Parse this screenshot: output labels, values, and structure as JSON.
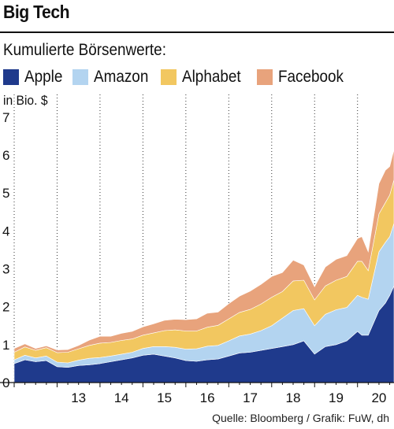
{
  "header": {
    "title": "Big Tech",
    "subtitle": "Kumulierte Börsenwerte:",
    "unit": "in Bio. $",
    "source": "Quelle: Bloomberg / Grafik: FuW, dh"
  },
  "chart_data": {
    "type": "area",
    "stacked": true,
    "title": "Big Tech",
    "subtitle": "Kumulierte Börsenwerte:",
    "ylabel": "in Bio. $",
    "ylim": [
      0,
      7.6
    ],
    "yticks": [
      0,
      1,
      2,
      3,
      4,
      5,
      6,
      7
    ],
    "ytick_labels": [
      "0",
      "1",
      "2",
      "3",
      "4",
      "5",
      "6",
      "7"
    ],
    "xlim": [
      2012.0,
      2020.85
    ],
    "xticks": [
      2013.5,
      2014.5,
      2015.5,
      2016.5,
      2017.5,
      2018.5,
      2019.5,
      2020.5
    ],
    "xtick_labels": [
      "13",
      "14",
      "15",
      "16",
      "17",
      "18",
      "19",
      "20"
    ],
    "gridlines": "vertical dotted at year boundaries",
    "legend": "top, horizontal",
    "x": [
      2012.0,
      2012.25,
      2012.5,
      2012.75,
      2013.0,
      2013.25,
      2013.5,
      2013.75,
      2014.0,
      2014.25,
      2014.5,
      2014.75,
      2015.0,
      2015.25,
      2015.5,
      2015.75,
      2016.0,
      2016.25,
      2016.5,
      2016.75,
      2017.0,
      2017.25,
      2017.5,
      2017.75,
      2018.0,
      2018.25,
      2018.5,
      2018.75,
      2019.0,
      2019.25,
      2019.5,
      2019.75,
      2020.0,
      2020.1,
      2020.25,
      2020.5,
      2020.65,
      2020.75,
      2020.85
    ],
    "series": [
      {
        "name": "Apple",
        "color": "#1f3a8c",
        "values": [
          0.5,
          0.6,
          0.55,
          0.58,
          0.42,
          0.4,
          0.45,
          0.47,
          0.5,
          0.55,
          0.6,
          0.65,
          0.72,
          0.75,
          0.7,
          0.65,
          0.58,
          0.56,
          0.6,
          0.62,
          0.7,
          0.78,
          0.8,
          0.85,
          0.9,
          0.95,
          1.0,
          1.1,
          0.75,
          0.95,
          1.0,
          1.1,
          1.35,
          1.25,
          1.25,
          1.9,
          2.1,
          2.3,
          2.55
        ]
      },
      {
        "name": "Amazon",
        "color": "#b3d4f0",
        "values": [
          0.1,
          0.12,
          0.1,
          0.12,
          0.12,
          0.12,
          0.14,
          0.17,
          0.16,
          0.15,
          0.15,
          0.15,
          0.18,
          0.2,
          0.25,
          0.28,
          0.3,
          0.33,
          0.36,
          0.36,
          0.4,
          0.45,
          0.48,
          0.52,
          0.6,
          0.75,
          0.9,
          0.85,
          0.75,
          0.85,
          0.92,
          0.88,
          0.95,
          1.0,
          0.95,
          1.55,
          1.6,
          1.55,
          1.65
        ]
      },
      {
        "name": "Alphabet",
        "color": "#f2c760",
        "values": [
          0.2,
          0.22,
          0.2,
          0.22,
          0.25,
          0.28,
          0.3,
          0.34,
          0.38,
          0.36,
          0.36,
          0.35,
          0.35,
          0.36,
          0.42,
          0.46,
          0.48,
          0.47,
          0.5,
          0.53,
          0.58,
          0.62,
          0.65,
          0.7,
          0.75,
          0.7,
          0.78,
          0.75,
          0.68,
          0.75,
          0.78,
          0.82,
          0.9,
          0.95,
          0.75,
          1.0,
          1.05,
          1.1,
          1.15
        ]
      },
      {
        "name": "Facebook",
        "color": "#e8a37c",
        "values": [
          0.1,
          0.08,
          0.05,
          0.05,
          0.07,
          0.07,
          0.09,
          0.14,
          0.18,
          0.16,
          0.19,
          0.2,
          0.22,
          0.24,
          0.27,
          0.28,
          0.3,
          0.32,
          0.37,
          0.35,
          0.4,
          0.43,
          0.48,
          0.52,
          0.55,
          0.5,
          0.55,
          0.4,
          0.35,
          0.5,
          0.55,
          0.55,
          0.6,
          0.65,
          0.5,
          0.8,
          0.85,
          0.75,
          0.8
        ]
      }
    ]
  }
}
